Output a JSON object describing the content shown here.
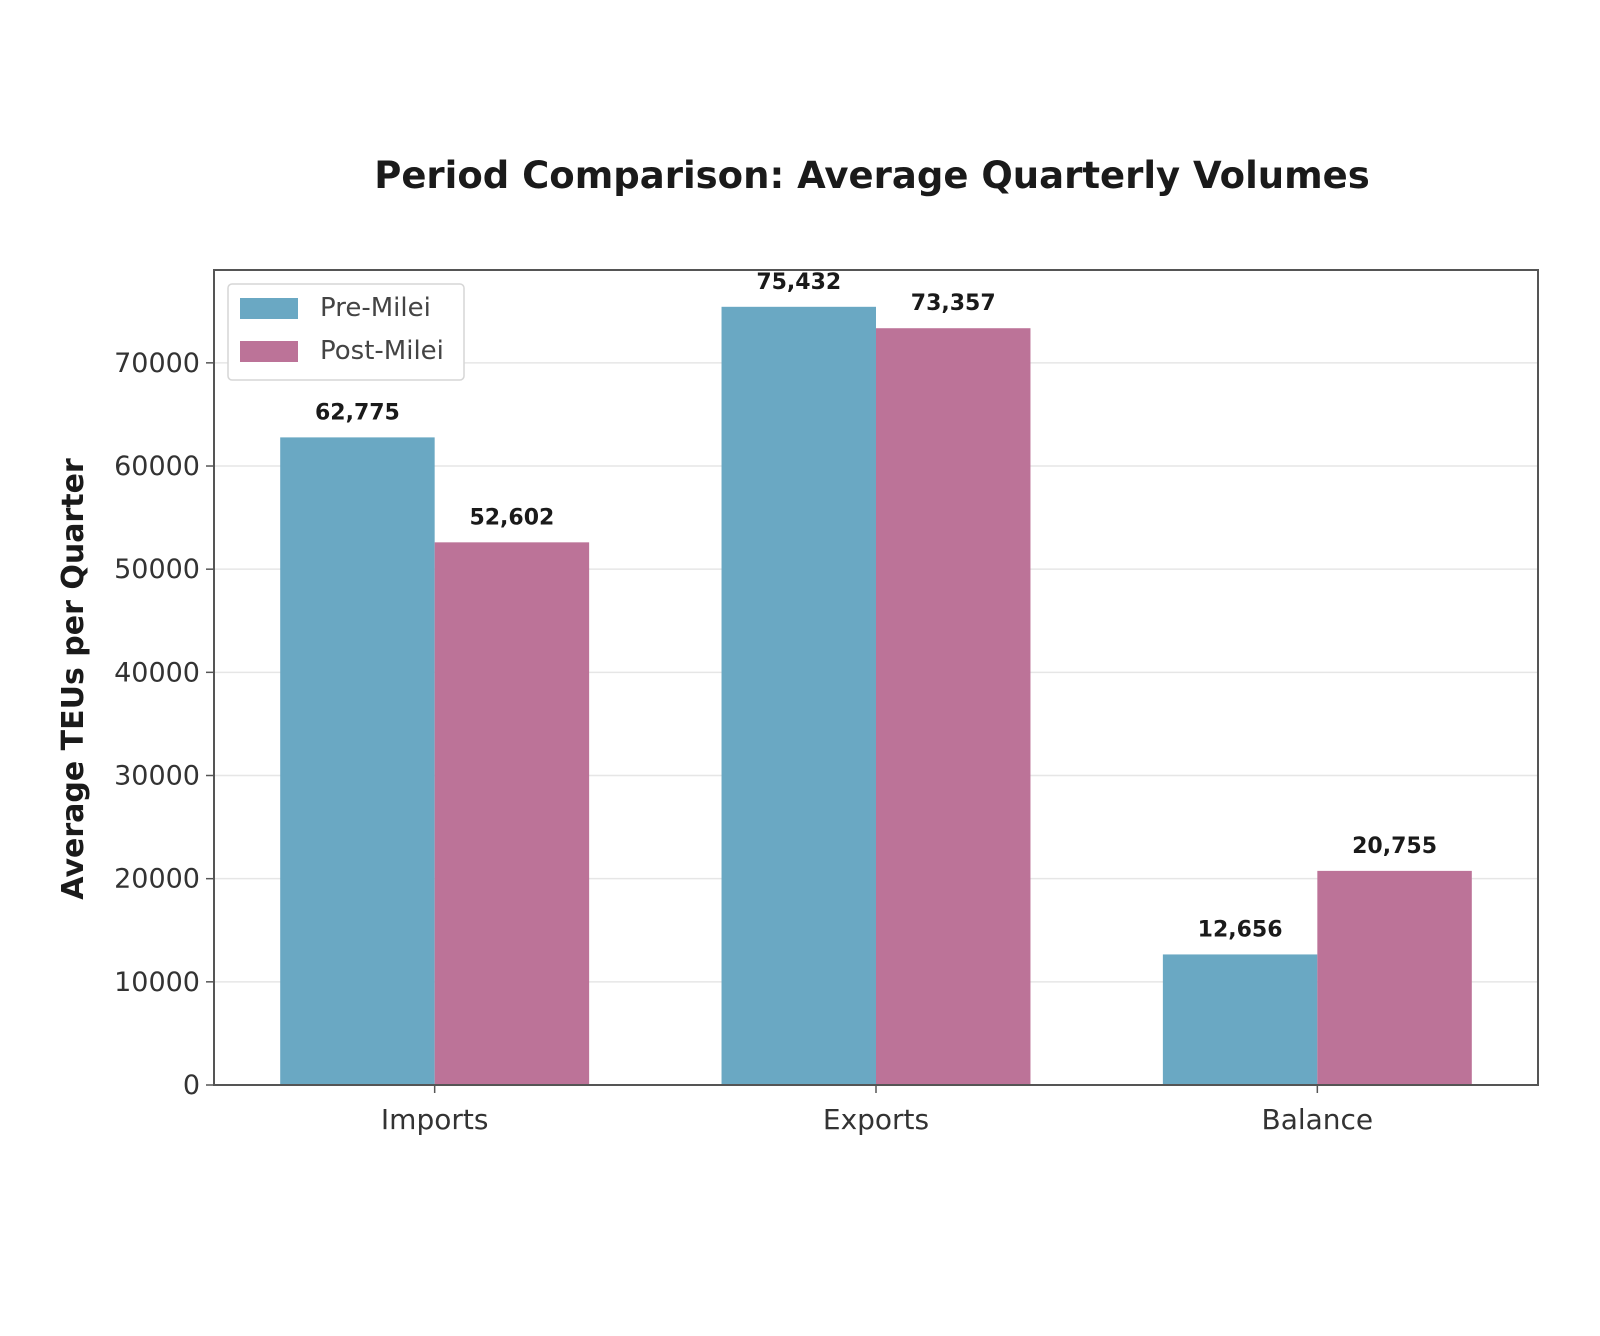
{
  "chart_data": {
    "type": "bar",
    "title": "Period Comparison: Average Quarterly Volumes",
    "xlabel": "",
    "ylabel": "Average TEUs per Quarter",
    "categories": [
      "Imports",
      "Exports",
      "Balance"
    ],
    "series": [
      {
        "name": "Pre-Milei",
        "color": "#6aa8c3",
        "values": [
          62775,
          75432,
          12656
        ],
        "labels": [
          "62,775",
          "75,432",
          "12,656"
        ]
      },
      {
        "name": "Post-Milei",
        "color": "#bc7398",
        "values": [
          52602,
          73357,
          20755
        ],
        "labels": [
          "52,602",
          "73,357",
          "20,755"
        ]
      }
    ],
    "ylim": [
      0,
      79000
    ],
    "yticks": [
      0,
      10000,
      20000,
      30000,
      40000,
      50000,
      60000,
      70000
    ],
    "ytick_labels": [
      "0",
      "10000",
      "20000",
      "30000",
      "40000",
      "50000",
      "60000",
      "70000"
    ],
    "grid": "horizontal",
    "legend_position": "top-left"
  }
}
